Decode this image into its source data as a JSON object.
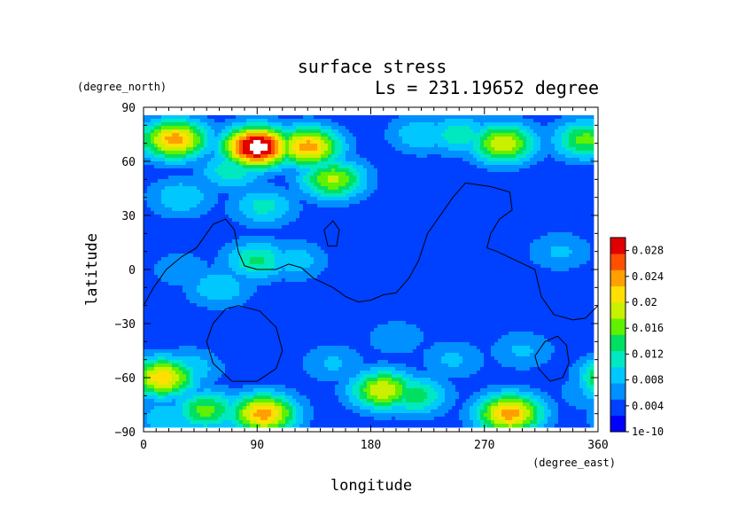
{
  "chart_data": {
    "type": "heatmap",
    "title": "surface stress",
    "subtitle": "Ls = 231.19652 degree",
    "xlabel": "longitude",
    "ylabel": "latitude",
    "x_unit": "(degree_east)",
    "y_unit": "(degree_north)",
    "xlim": [
      0,
      360
    ],
    "ylim": [
      -90,
      90
    ],
    "x_ticks": [
      0,
      90,
      180,
      270,
      360
    ],
    "x_tick_labels": [
      "0",
      "90",
      "180",
      "270",
      "360"
    ],
    "y_ticks": [
      90,
      60,
      30,
      0,
      -30,
      -60,
      -90
    ],
    "y_tick_labels": [
      "90",
      "60",
      "30",
      "0",
      "−30",
      "−60",
      "−90"
    ],
    "colorbar": {
      "range": [
        0,
        0.03
      ],
      "tick_values": [
        0.028,
        0.024,
        0.02,
        0.016,
        0.012,
        0.008,
        0.004,
        0
      ],
      "tick_labels": [
        "0.028",
        "0.024",
        "0.02",
        "0.016",
        "0.012",
        "0.008",
        "0.004",
        "1e-10"
      ],
      "colors": [
        "#0000ff",
        "#0040ff",
        "#0090ff",
        "#00c8ff",
        "#00e8c0",
        "#00e060",
        "#60f000",
        "#c8f000",
        "#ffe000",
        "#ffa000",
        "#ff5000",
        "#e00000"
      ]
    },
    "field_features": [
      {
        "lon": 90,
        "lat": 68,
        "value": 0.034
      },
      {
        "lon": 25,
        "lat": 72,
        "value": 0.024
      },
      {
        "lon": 130,
        "lat": 68,
        "value": 0.024
      },
      {
        "lon": 150,
        "lat": 50,
        "value": 0.018
      },
      {
        "lon": 70,
        "lat": 55,
        "value": 0.012
      },
      {
        "lon": 220,
        "lat": 75,
        "value": 0.01
      },
      {
        "lon": 285,
        "lat": 70,
        "value": 0.02
      },
      {
        "lon": 350,
        "lat": 72,
        "value": 0.016
      },
      {
        "lon": 250,
        "lat": 75,
        "value": 0.012
      },
      {
        "lon": 30,
        "lat": 40,
        "value": 0.01
      },
      {
        "lon": 95,
        "lat": 35,
        "value": 0.011
      },
      {
        "lon": 90,
        "lat": 5,
        "value": 0.013
      },
      {
        "lon": 60,
        "lat": -10,
        "value": 0.01
      },
      {
        "lon": 120,
        "lat": 5,
        "value": 0.009
      },
      {
        "lon": 30,
        "lat": 0,
        "value": 0.007
      },
      {
        "lon": 330,
        "lat": 10,
        "value": 0.008
      },
      {
        "lon": 300,
        "lat": -45,
        "value": 0.008
      },
      {
        "lon": 245,
        "lat": -50,
        "value": 0.008
      },
      {
        "lon": 150,
        "lat": -52,
        "value": 0.008
      },
      {
        "lon": 200,
        "lat": -38,
        "value": 0.007
      },
      {
        "lon": 15,
        "lat": -60,
        "value": 0.022
      },
      {
        "lon": 35,
        "lat": -55,
        "value": 0.01
      },
      {
        "lon": 95,
        "lat": -80,
        "value": 0.024
      },
      {
        "lon": 50,
        "lat": -78,
        "value": 0.016
      },
      {
        "lon": 190,
        "lat": -67,
        "value": 0.02
      },
      {
        "lon": 215,
        "lat": -70,
        "value": 0.014
      },
      {
        "lon": 290,
        "lat": -80,
        "value": 0.024
      },
      {
        "lon": 355,
        "lat": -68,
        "value": 0.008
      },
      {
        "lon": 20,
        "lat": -82,
        "value": 0.01
      }
    ],
    "background_value": 0.003,
    "low_band": {
      "lat": -25,
      "value": 0.001
    },
    "contour_lines": [
      [
        [
          0,
          -20
        ],
        [
          8,
          -10
        ],
        [
          18,
          0
        ],
        [
          30,
          7
        ],
        [
          42,
          12
        ],
        [
          55,
          25
        ],
        [
          65,
          28
        ],
        [
          72,
          22
        ],
        [
          75,
          10
        ],
        [
          80,
          2
        ],
        [
          90,
          0
        ],
        [
          105,
          0
        ],
        [
          115,
          3
        ],
        [
          125,
          1
        ],
        [
          135,
          -5
        ],
        [
          150,
          -10
        ],
        [
          160,
          -15
        ],
        [
          170,
          -18
        ],
        [
          180,
          -17
        ],
        [
          190,
          -14
        ],
        [
          200,
          -13
        ],
        [
          210,
          -5
        ],
        [
          218,
          5
        ],
        [
          225,
          20
        ],
        [
          235,
          30
        ],
        [
          245,
          40
        ],
        [
          255,
          48
        ],
        [
          275,
          46
        ],
        [
          290,
          43
        ],
        [
          292,
          33
        ],
        [
          282,
          28
        ],
        [
          275,
          20
        ],
        [
          272,
          12
        ],
        [
          280,
          10
        ],
        [
          295,
          5
        ],
        [
          310,
          0
        ],
        [
          315,
          -15
        ],
        [
          325,
          -25
        ],
        [
          340,
          -28
        ],
        [
          350,
          -27
        ],
        [
          360,
          -20
        ]
      ],
      [
        [
          75,
          -20
        ],
        [
          92,
          -23
        ],
        [
          105,
          -32
        ],
        [
          110,
          -45
        ],
        [
          105,
          -55
        ],
        [
          90,
          -62
        ],
        [
          70,
          -62
        ],
        [
          55,
          -52
        ],
        [
          50,
          -40
        ],
        [
          55,
          -30
        ],
        [
          65,
          -22
        ],
        [
          75,
          -20
        ]
      ],
      [
        [
          310,
          -48
        ],
        [
          318,
          -40
        ],
        [
          328,
          -37
        ],
        [
          335,
          -42
        ],
        [
          337,
          -52
        ],
        [
          332,
          -60
        ],
        [
          322,
          -62
        ],
        [
          313,
          -55
        ],
        [
          310,
          -48
        ]
      ],
      [
        [
          143,
          22
        ],
        [
          150,
          27
        ],
        [
          155,
          22
        ],
        [
          153,
          13
        ],
        [
          146,
          13
        ],
        [
          143,
          22
        ]
      ]
    ]
  }
}
